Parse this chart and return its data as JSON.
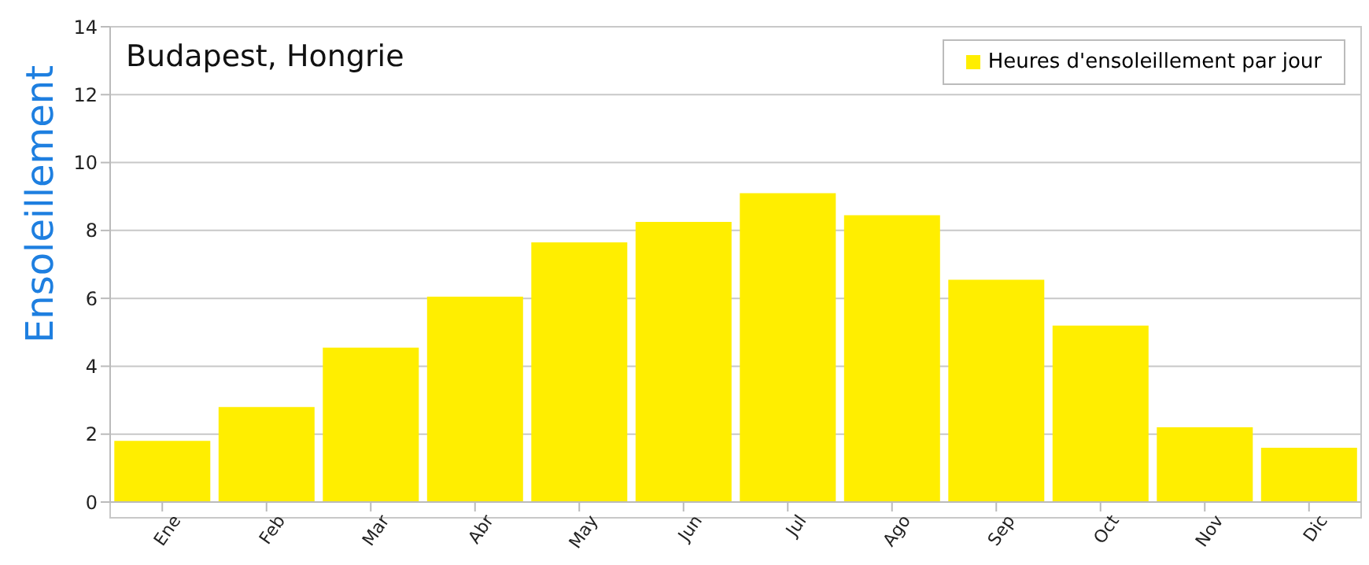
{
  "chart_data": {
    "type": "bar",
    "title": "Budapest, Hongrie",
    "ylabel": "Ensoleillement",
    "categories": [
      "Ene",
      "Feb",
      "Mar",
      "Abr",
      "May",
      "Jun",
      "Jul",
      "Ago",
      "Sep",
      "Oct",
      "Nov",
      "Dic"
    ],
    "series": [
      {
        "name": "Heures d'ensoleillement par jour",
        "color": "#ffee00",
        "values": [
          1.8,
          2.8,
          4.55,
          6.05,
          7.65,
          8.25,
          9.1,
          8.45,
          6.55,
          5.2,
          2.2,
          1.6
        ]
      }
    ],
    "ylim": [
      0,
      14
    ],
    "yticks": [
      0,
      2,
      4,
      6,
      8,
      10,
      12,
      14
    ],
    "grid": "y",
    "legend": "top right"
  }
}
